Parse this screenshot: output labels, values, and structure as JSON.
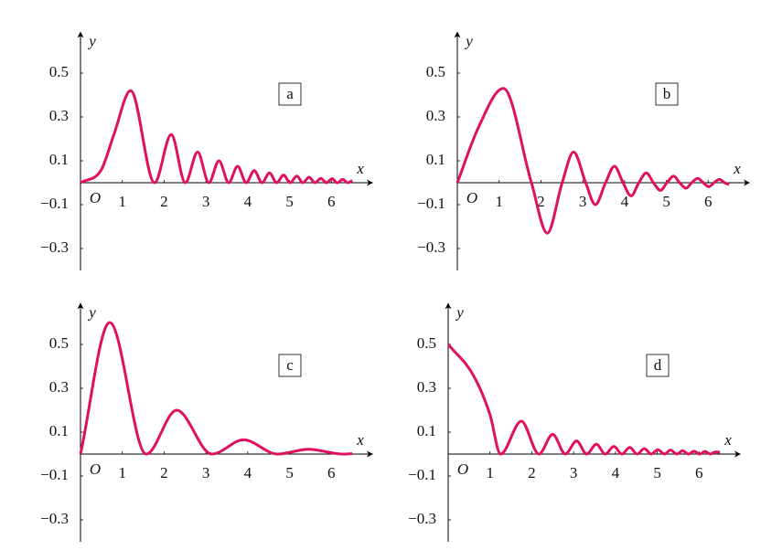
{
  "chart_data": [
    {
      "type": "line",
      "label": "a",
      "xlabel": "x",
      "ylabel": "y",
      "origin_label": "O",
      "color": "#e0105f",
      "xlim": [
        0,
        7
      ],
      "ylim": [
        -0.4,
        0.69
      ],
      "xticks": [
        1,
        2,
        3,
        4,
        5,
        6
      ],
      "yticks": [
        {
          "value": -0.3,
          "label": "−0.3"
        },
        {
          "value": -0.1,
          "label": "−0.1"
        },
        0.1,
        0.3,
        0.5
      ],
      "x": [
        0,
        0.5,
        0.8,
        1.2,
        1.772,
        2.171,
        2.507,
        2.802,
        3.07,
        3.312,
        3.545,
        3.757,
        3.963,
        4.155,
        4.342,
        4.52,
        4.69,
        4.857,
        5.013,
        5.173,
        5.317,
        5.469,
        5.605,
        5.75,
        5.879,
        6.017,
        6.14,
        6.272,
        6.391,
        6.5
      ],
      "values": [
        0,
        0.06,
        0.22,
        0.42,
        0,
        0.22,
        0,
        0.14,
        0,
        0.1,
        0,
        0.075,
        0,
        0.055,
        0,
        0.045,
        0,
        0.035,
        0,
        0.03,
        0,
        0.025,
        0,
        0.02,
        0,
        0.018,
        0,
        0.015,
        0,
        0.01
      ]
    },
    {
      "type": "line",
      "label": "b",
      "xlabel": "x",
      "ylabel": "y",
      "origin_label": "O",
      "color": "#e0105f",
      "xlim": [
        0,
        7
      ],
      "ylim": [
        -0.4,
        0.69
      ],
      "xticks": [
        1,
        2,
        3,
        4,
        5,
        6
      ],
      "yticks": [
        {
          "value": -0.3,
          "label": "−0.3"
        },
        {
          "value": -0.1,
          "label": "−0.1"
        },
        0.1,
        0.3,
        0.5
      ],
      "x": [
        0,
        0.5,
        1.1,
        1.772,
        2.15,
        2.507,
        2.78,
        3.07,
        3.3,
        3.545,
        3.757,
        3.963,
        4.155,
        4.342,
        4.52,
        4.69,
        4.857,
        5.013,
        5.173,
        5.317,
        5.469,
        5.605,
        5.75,
        5.879,
        6.017,
        6.14,
        6.272,
        6.391,
        6.5
      ],
      "values": [
        0,
        0.25,
        0.43,
        0,
        -0.23,
        0,
        0.14,
        0,
        -0.1,
        0,
        0.075,
        0,
        -0.06,
        0,
        0.045,
        0,
        -0.035,
        0,
        0.03,
        0,
        -0.025,
        0,
        0.02,
        0,
        -0.018,
        0,
        0.015,
        0,
        -0.008
      ]
    },
    {
      "type": "line",
      "label": "c",
      "xlabel": "x",
      "ylabel": "y",
      "origin_label": "O",
      "color": "#e0105f",
      "xlim": [
        0,
        7
      ],
      "ylim": [
        -0.4,
        0.69
      ],
      "xticks": [
        1,
        2,
        3,
        4,
        5,
        6
      ],
      "yticks": [
        {
          "value": -0.3,
          "label": "−0.3"
        },
        {
          "value": -0.1,
          "label": "−0.1"
        },
        0.1,
        0.3,
        0.5
      ],
      "x": [
        0,
        0.7,
        1.571,
        2.3,
        3.142,
        3.9,
        4.712,
        5.45,
        6.283,
        6.5
      ],
      "values": [
        0,
        0.6,
        0,
        0.2,
        0,
        0.065,
        0,
        0.022,
        0,
        0.002
      ]
    },
    {
      "type": "line",
      "label": "d",
      "xlabel": "x",
      "ylabel": "y",
      "origin_label": "O",
      "color": "#e0105f",
      "xlim": [
        0,
        7
      ],
      "ylim": [
        -0.4,
        0.69
      ],
      "xticks": [
        1,
        2,
        3,
        4,
        5,
        6
      ],
      "yticks": [
        {
          "value": -0.3,
          "label": "−0.3"
        },
        {
          "value": -0.1,
          "label": "−0.1"
        },
        0.1,
        0.3,
        0.5
      ],
      "x": [
        0,
        0.6,
        1.0,
        1.253,
        1.75,
        2.171,
        2.5,
        2.802,
        3.07,
        3.312,
        3.545,
        3.757,
        3.963,
        4.155,
        4.342,
        4.52,
        4.69,
        4.857,
        5.013,
        5.173,
        5.317,
        5.469,
        5.605,
        5.75,
        5.879,
        6.017,
        6.14,
        6.272,
        6.391,
        6.5
      ],
      "values": [
        0.5,
        0.36,
        0.18,
        0,
        0.15,
        0,
        0.09,
        0,
        0.06,
        0,
        0.045,
        0,
        0.035,
        0,
        0.03,
        0,
        0.025,
        0,
        0.02,
        0,
        0.018,
        0,
        0.015,
        0,
        0.013,
        0,
        0.012,
        0,
        0.01,
        0.008
      ]
    }
  ]
}
